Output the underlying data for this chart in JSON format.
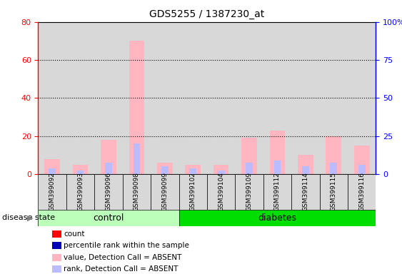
{
  "title": "GDS5255 / 1387230_at",
  "samples": [
    "GSM399092",
    "GSM399093",
    "GSM399096",
    "GSM399098",
    "GSM399099",
    "GSM399102",
    "GSM399104",
    "GSM399109",
    "GSM399112",
    "GSM399114",
    "GSM399115",
    "GSM399116"
  ],
  "control_count": 5,
  "diabetes_count": 7,
  "ylim_left": [
    0,
    80
  ],
  "ylim_right": [
    0,
    100
  ],
  "yticks_left": [
    0,
    20,
    40,
    60,
    80
  ],
  "yticks_right": [
    0,
    25,
    50,
    75,
    100
  ],
  "ytick_labels_left": [
    "0",
    "20",
    "40",
    "60",
    "80"
  ],
  "ytick_labels_right": [
    "0",
    "25",
    "50",
    "75",
    "100%"
  ],
  "value_absent": [
    8,
    5,
    18,
    70,
    6,
    5,
    5,
    19,
    23,
    10,
    20,
    15
  ],
  "rank_absent": [
    3,
    2,
    6,
    16,
    4,
    3,
    2,
    6,
    7,
    4,
    6,
    5
  ],
  "color_value_absent": "#FFB6C1",
  "color_rank_absent": "#BBBBFF",
  "color_count": "#FF0000",
  "color_pct_rank": "#0000BB",
  "bg_plot": "#D8D8D8",
  "bg_control": "#BBFFBB",
  "bg_diabetes": "#00DD00",
  "legend_items": [
    {
      "label": "count",
      "color": "#FF0000"
    },
    {
      "label": "percentile rank within the sample",
      "color": "#0000BB"
    },
    {
      "label": "value, Detection Call = ABSENT",
      "color": "#FFB6C1"
    },
    {
      "label": "rank, Detection Call = ABSENT",
      "color": "#BBBBFF"
    }
  ],
  "disease_state_label": "disease state",
  "control_label": "control",
  "diabetes_label": "diabetes",
  "bar_width": 0.55
}
